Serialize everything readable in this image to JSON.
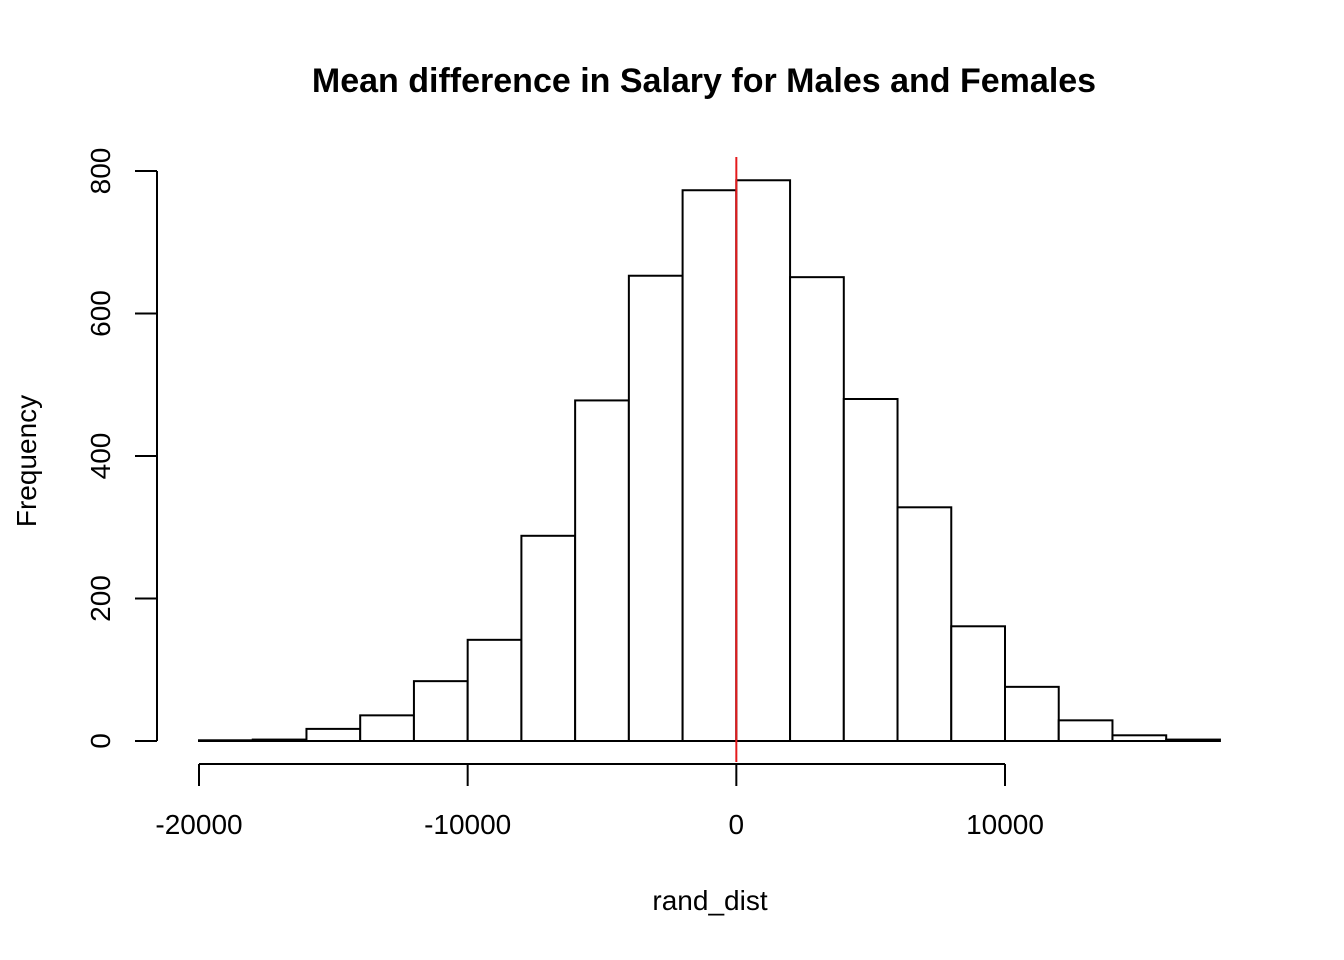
{
  "chart_data": {
    "type": "bar",
    "title": "Mean difference in Salary for Males and Females",
    "xlabel": "rand_dist",
    "ylabel": "Frequency",
    "bins": [
      {
        "start": -20000,
        "end": -18000,
        "count": 1
      },
      {
        "start": -18000,
        "end": -16000,
        "count": 2
      },
      {
        "start": -16000,
        "end": -14000,
        "count": 17
      },
      {
        "start": -14000,
        "end": -12000,
        "count": 36
      },
      {
        "start": -12000,
        "end": -10000,
        "count": 84
      },
      {
        "start": -10000,
        "end": -8000,
        "count": 142
      },
      {
        "start": -8000,
        "end": -6000,
        "count": 288
      },
      {
        "start": -6000,
        "end": -4000,
        "count": 478
      },
      {
        "start": -4000,
        "end": -2000,
        "count": 653
      },
      {
        "start": -2000,
        "end": 0,
        "count": 773
      },
      {
        "start": 0,
        "end": 2000,
        "count": 787
      },
      {
        "start": 2000,
        "end": 4000,
        "count": 651
      },
      {
        "start": 4000,
        "end": 6000,
        "count": 480
      },
      {
        "start": 6000,
        "end": 8000,
        "count": 328
      },
      {
        "start": 8000,
        "end": 10000,
        "count": 161
      },
      {
        "start": 10000,
        "end": 12000,
        "count": 76
      },
      {
        "start": 12000,
        "end": 14000,
        "count": 29
      },
      {
        "start": 14000,
        "end": 16000,
        "count": 8
      },
      {
        "start": 16000,
        "end": 18000,
        "count": 2
      }
    ],
    "x_ticks": [
      -20000,
      -10000,
      0,
      10000
    ],
    "x_tick_labels": [
      "-20000",
      "-10000",
      "0",
      "10000"
    ],
    "y_ticks": [
      0,
      200,
      400,
      600,
      800
    ],
    "y_tick_labels": [
      "0",
      "200",
      "400",
      "600",
      "800"
    ],
    "xlim": [
      -20000,
      18000
    ],
    "ylim": [
      0,
      800
    ],
    "reference_line": {
      "x": 0,
      "color": "#e41a1c"
    },
    "grid": false,
    "legend": "none"
  }
}
